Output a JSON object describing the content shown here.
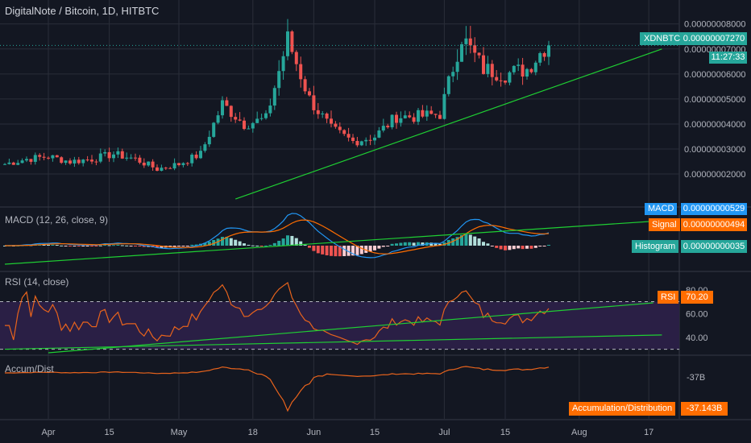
{
  "header": {
    "title": "DigitalNote / Bitcoin, 1D, HITBTC",
    "symbol": "XDNBTC",
    "last_price": "0.00000007270",
    "countdown": "11:27:33"
  },
  "colors": {
    "background": "#131722",
    "grid": "#2a2e39",
    "up": "#26a69a",
    "down": "#ef5350",
    "trendline": "#1fcf33",
    "macd_line": "#2196f3",
    "signal_line": "#ff6d00",
    "rsi_line": "#e8631c",
    "rsi_band": "#2a1f45",
    "ad_line": "#e8631c"
  },
  "xaxis": {
    "ticks": [
      {
        "label": "Apr",
        "t": 10
      },
      {
        "label": "15",
        "t": 24
      },
      {
        "label": "May",
        "t": 40
      },
      {
        "label": "18",
        "t": 57
      },
      {
        "label": "Jun",
        "t": 71
      },
      {
        "label": "15",
        "t": 85
      },
      {
        "label": "Jul",
        "t": 101
      },
      {
        "label": "15",
        "t": 115
      },
      {
        "label": "Aug",
        "t": 132
      },
      {
        "label": "17",
        "t": 148
      }
    ]
  },
  "price_pane": {
    "y_ticks": [
      "0.00000008000",
      "0.00000007000",
      "0.00000006000",
      "0.00000005000",
      "0.00000004000",
      "0.00000003000",
      "0.00000002000"
    ],
    "y_tick_values": [
      8e-08,
      7e-08,
      6e-08,
      5e-08,
      4e-08,
      3e-08,
      2e-08
    ],
    "ylim": [
      1.1e-08,
      8.7e-08
    ],
    "trendline": [
      {
        "t": 53,
        "v": 1e-08
      },
      {
        "t": 151,
        "v": 7e-08
      }
    ]
  },
  "macd_pane": {
    "title": "MACD (12, 26, close, 9)",
    "labels": [
      {
        "name": "MACD",
        "value": "0.00000000529"
      },
      {
        "name": "Signal",
        "value": "0.00000000494"
      },
      {
        "name": "Histogram",
        "value": "0.00000000035"
      }
    ]
  },
  "rsi_pane": {
    "title": "RSI (14, close)",
    "y_ticks": [
      "80.00",
      "60.00",
      "40.00"
    ],
    "y_tick_values": [
      80,
      60,
      40
    ],
    "ylim": [
      27,
      88
    ],
    "band": [
      30,
      70
    ],
    "label": "RSI",
    "value": "70.20",
    "trendlines": [
      [
        {
          "t": 10,
          "v": 27
        },
        {
          "t": 149,
          "v": 69
        }
      ],
      [
        {
          "t": 0,
          "v": 30
        },
        {
          "t": 151,
          "v": 42
        }
      ]
    ]
  },
  "ad_pane": {
    "title": "Accum/Dist",
    "y_tick": "-37B",
    "label": "Accumulation/Distribution",
    "value": "-37.143B"
  },
  "chart_data": {
    "type": "candlestick",
    "title": "DigitalNote / Bitcoin, 1D, HITBTC",
    "x_axis_ticks": [
      "Apr",
      "15",
      "May",
      "18",
      "Jun",
      "15",
      "Jul",
      "15",
      "Aug",
      "17"
    ],
    "series": [
      {
        "name": "XDNBTC",
        "note": "daily OHLC candles; approximate closes from late March to late July",
        "closes_approx": [
          2.4e-08,
          2.6e-08,
          2.7e-08,
          2.5e-08,
          2.6e-08,
          2.8e-08,
          2.6e-08,
          2.2e-08,
          2.4e-08,
          2.8e-08,
          4.8e-08,
          4e-08,
          4.2e-08,
          7.4e-08,
          5e-08,
          3.8e-08,
          3.3e-08,
          3.5e-08,
          4.3e-08,
          4.3e-08,
          4.4e-08,
          7.5e-08,
          6.2e-08,
          6e-08,
          6.2e-08,
          7.27e-08
        ]
      },
      {
        "name": "MACD",
        "last": 5.29e-09
      },
      {
        "name": "Signal",
        "last": 4.94e-09
      },
      {
        "name": "Histogram",
        "last": 3.5e-10
      },
      {
        "name": "RSI",
        "last": 70.2
      },
      {
        "name": "Accumulation/Distribution",
        "last": -37143000000.0
      }
    ]
  }
}
